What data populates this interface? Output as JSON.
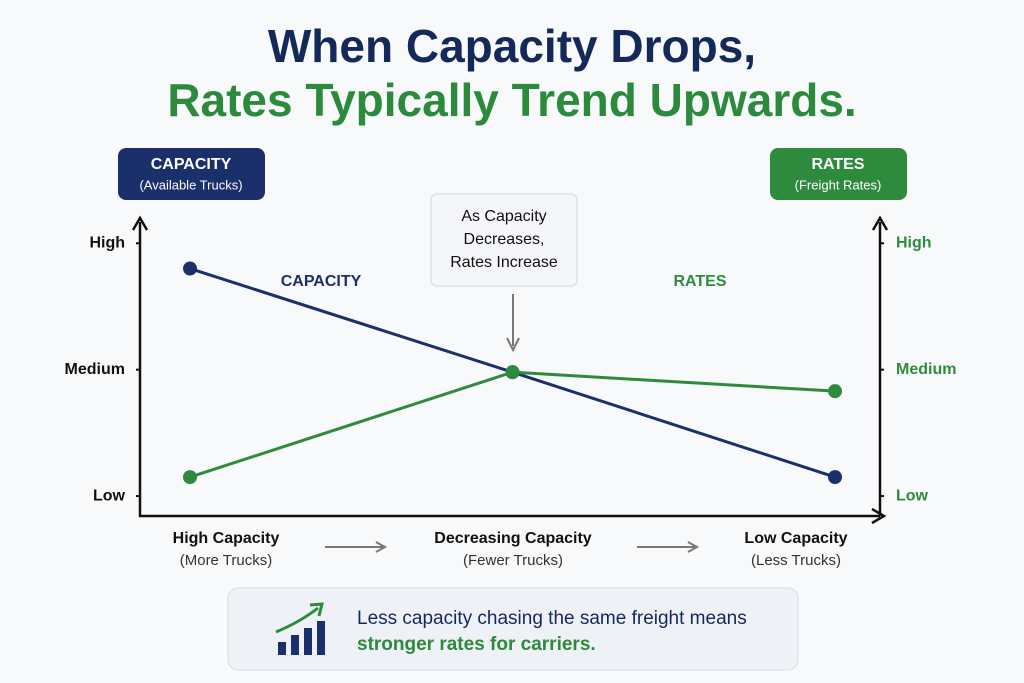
{
  "chart_data": {
    "type": "line",
    "title": "When Capacity Drops,",
    "subtitle": "Rates Typically Trend Upwards.",
    "categories": [
      "High Capacity",
      "Decreasing Capacity",
      "Low Capacity"
    ],
    "category_notes": [
      "(More Trucks)",
      "(Fewer Trucks)",
      "(Less Trucks)"
    ],
    "ylabel": "(Available Trucks)",
    "y2label": "(Freight Rates)",
    "ylim": [
      0.85,
      3.2
    ],
    "yticks": [
      {
        "value": 1,
        "label": "Low"
      },
      {
        "value": 2,
        "label": "Medium"
      },
      {
        "value": 3,
        "label": "High"
      }
    ],
    "y2lim": [
      0.85,
      3.2
    ],
    "y2ticks": [
      {
        "value": 1,
        "label": "Low"
      },
      {
        "value": 2,
        "label": "Medium"
      },
      {
        "value": 3,
        "label": "High"
      }
    ],
    "series": [
      {
        "name": "CAPACITY",
        "color": "#1b2f6b",
        "values": [
          2.8,
          1.98,
          1.15
        ]
      },
      {
        "name": "RATES",
        "color": "#2e8b3e",
        "axis": "y2",
        "values": [
          1.15,
          1.98,
          1.83
        ]
      }
    ],
    "annotation": [
      "As Capacity",
      "Decreases,",
      "Rates Increase"
    ],
    "note": [
      "Less capacity chasing the same freight means",
      "stronger rates for carriers."
    ]
  }
}
